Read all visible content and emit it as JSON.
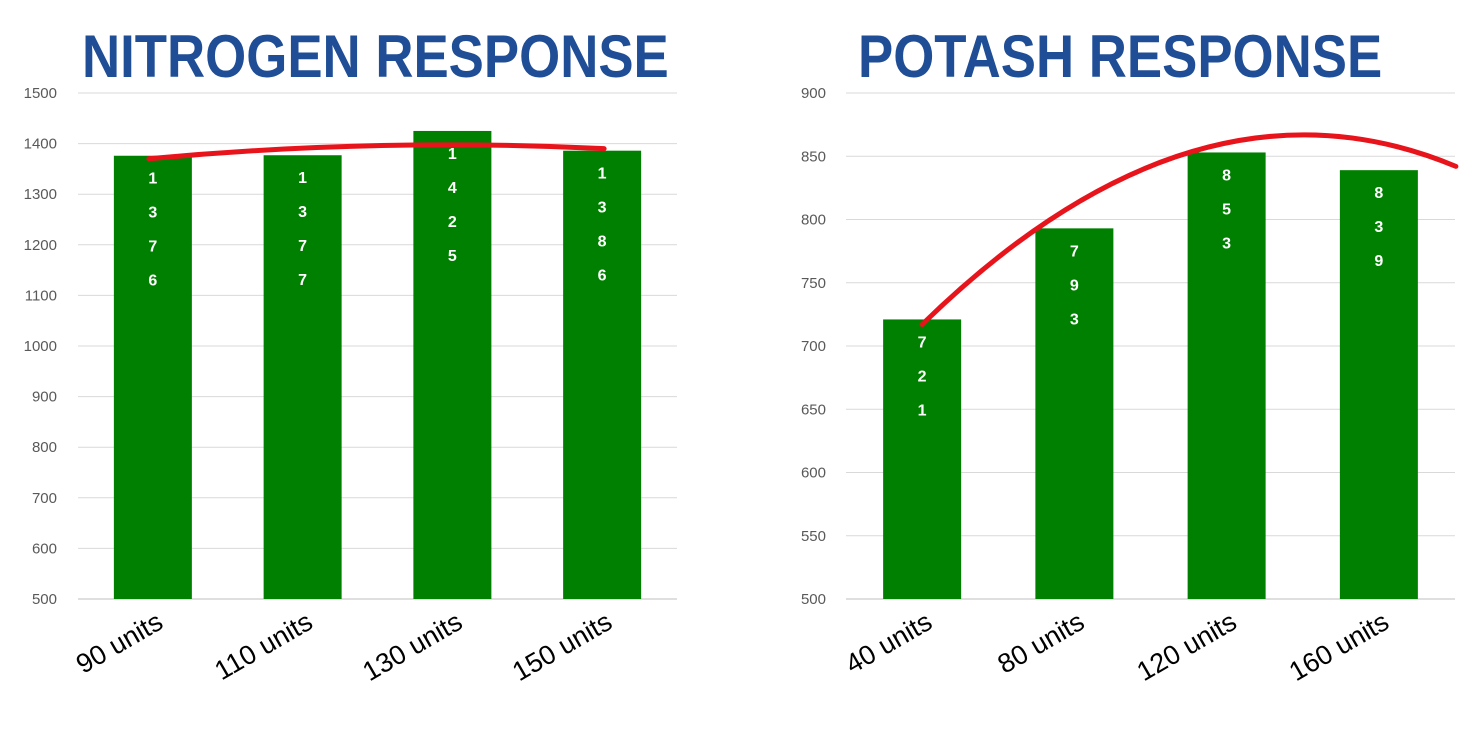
{
  "chart_data": [
    {
      "type": "bar",
      "title": "NITROGEN RESPONSE",
      "categories": [
        "90 units",
        "110 units",
        "130 units",
        "150 units"
      ],
      "values": [
        1376,
        1377,
        1425,
        1386
      ],
      "ylim": [
        500,
        1500
      ],
      "yticks": [
        500,
        600,
        700,
        800,
        900,
        1000,
        1100,
        1200,
        1300,
        1400,
        1500
      ],
      "data_labels": [
        "1376",
        "1377",
        "1425",
        "1386"
      ],
      "trendline": {
        "type": "curve",
        "color": "#e8141c"
      },
      "bar_color": "#008000",
      "grid": true
    },
    {
      "type": "bar",
      "title": "POTASH RESPONSE",
      "categories": [
        "40 units",
        "80 units",
        "120 units",
        "160 units"
      ],
      "values": [
        721,
        793,
        853,
        839
      ],
      "ylim": [
        500,
        900
      ],
      "yticks": [
        500,
        550,
        600,
        650,
        700,
        750,
        800,
        850,
        900
      ],
      "data_labels": [
        "721",
        "793",
        "853",
        "839"
      ],
      "trendline": {
        "type": "curve",
        "color": "#e8141c"
      },
      "bar_color": "#008000",
      "grid": true
    }
  ]
}
